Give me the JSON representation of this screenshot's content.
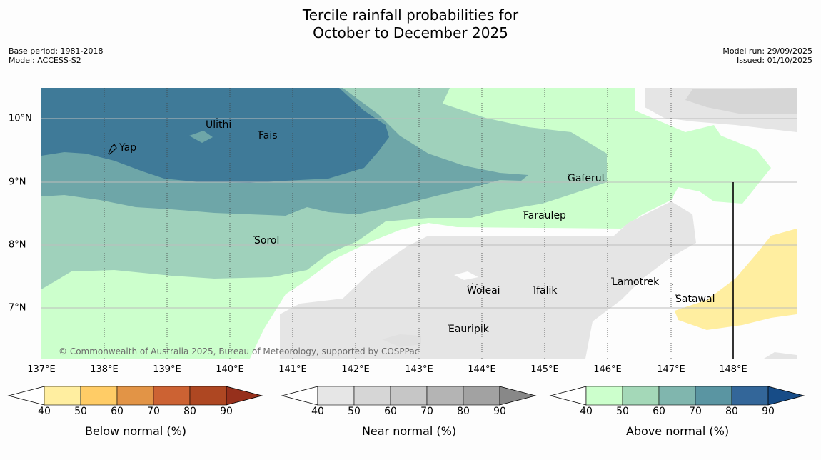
{
  "title_line1": "Tercile rainfall probabilities for",
  "title_line2": "October to December 2025",
  "meta_left": {
    "base_period": "Base period: 1981-2018",
    "model": "Model: ACCESS-S2"
  },
  "meta_right": {
    "model_run": "Model run: 29/09/2025",
    "issued": "Issued: 01/10/2025"
  },
  "lon_labels": [
    "137°E",
    "138°E",
    "139°E",
    "140°E",
    "141°E",
    "142°E",
    "143°E",
    "144°E",
    "145°E",
    "146°E",
    "147°E",
    "148°E"
  ],
  "lat_labels": [
    "10°N",
    "9°N",
    "8°N",
    "7°N"
  ],
  "places": [
    "Yap",
    "Ulithi",
    "Fais",
    "Gaferut",
    "Faraulep",
    "Sorol",
    "Woleai",
    "Ifalik",
    "Lamotrek",
    "Satawal",
    "Eauripik"
  ],
  "copyright": "© Commonwealth of Australia 2025, Bureau of Meteorology, supported by COSPPac",
  "colorbars": [
    {
      "label": "Below normal (%)",
      "ticks": [
        "40",
        "50",
        "60",
        "70",
        "80",
        "90"
      ],
      "colors": [
        "#ffeea0",
        "#ffcc66",
        "#e29446",
        "#cc6233",
        "#ae4722",
        "#96301c"
      ]
    },
    {
      "label": "Near normal (%)",
      "ticks": [
        "40",
        "50",
        "60",
        "70",
        "80",
        "90"
      ],
      "colors": [
        "#e6e6e6",
        "#d6d6d6",
        "#c6c6c6",
        "#b4b4b4",
        "#a2a2a2",
        "#888888"
      ]
    },
    {
      "label": "Above normal (%)",
      "ticks": [
        "40",
        "50",
        "60",
        "70",
        "80",
        "90"
      ],
      "colors": [
        "#ccffcc",
        "#a4d8b8",
        "#80b6ae",
        "#5a95a2",
        "#336699",
        "#174c87"
      ]
    }
  ]
}
